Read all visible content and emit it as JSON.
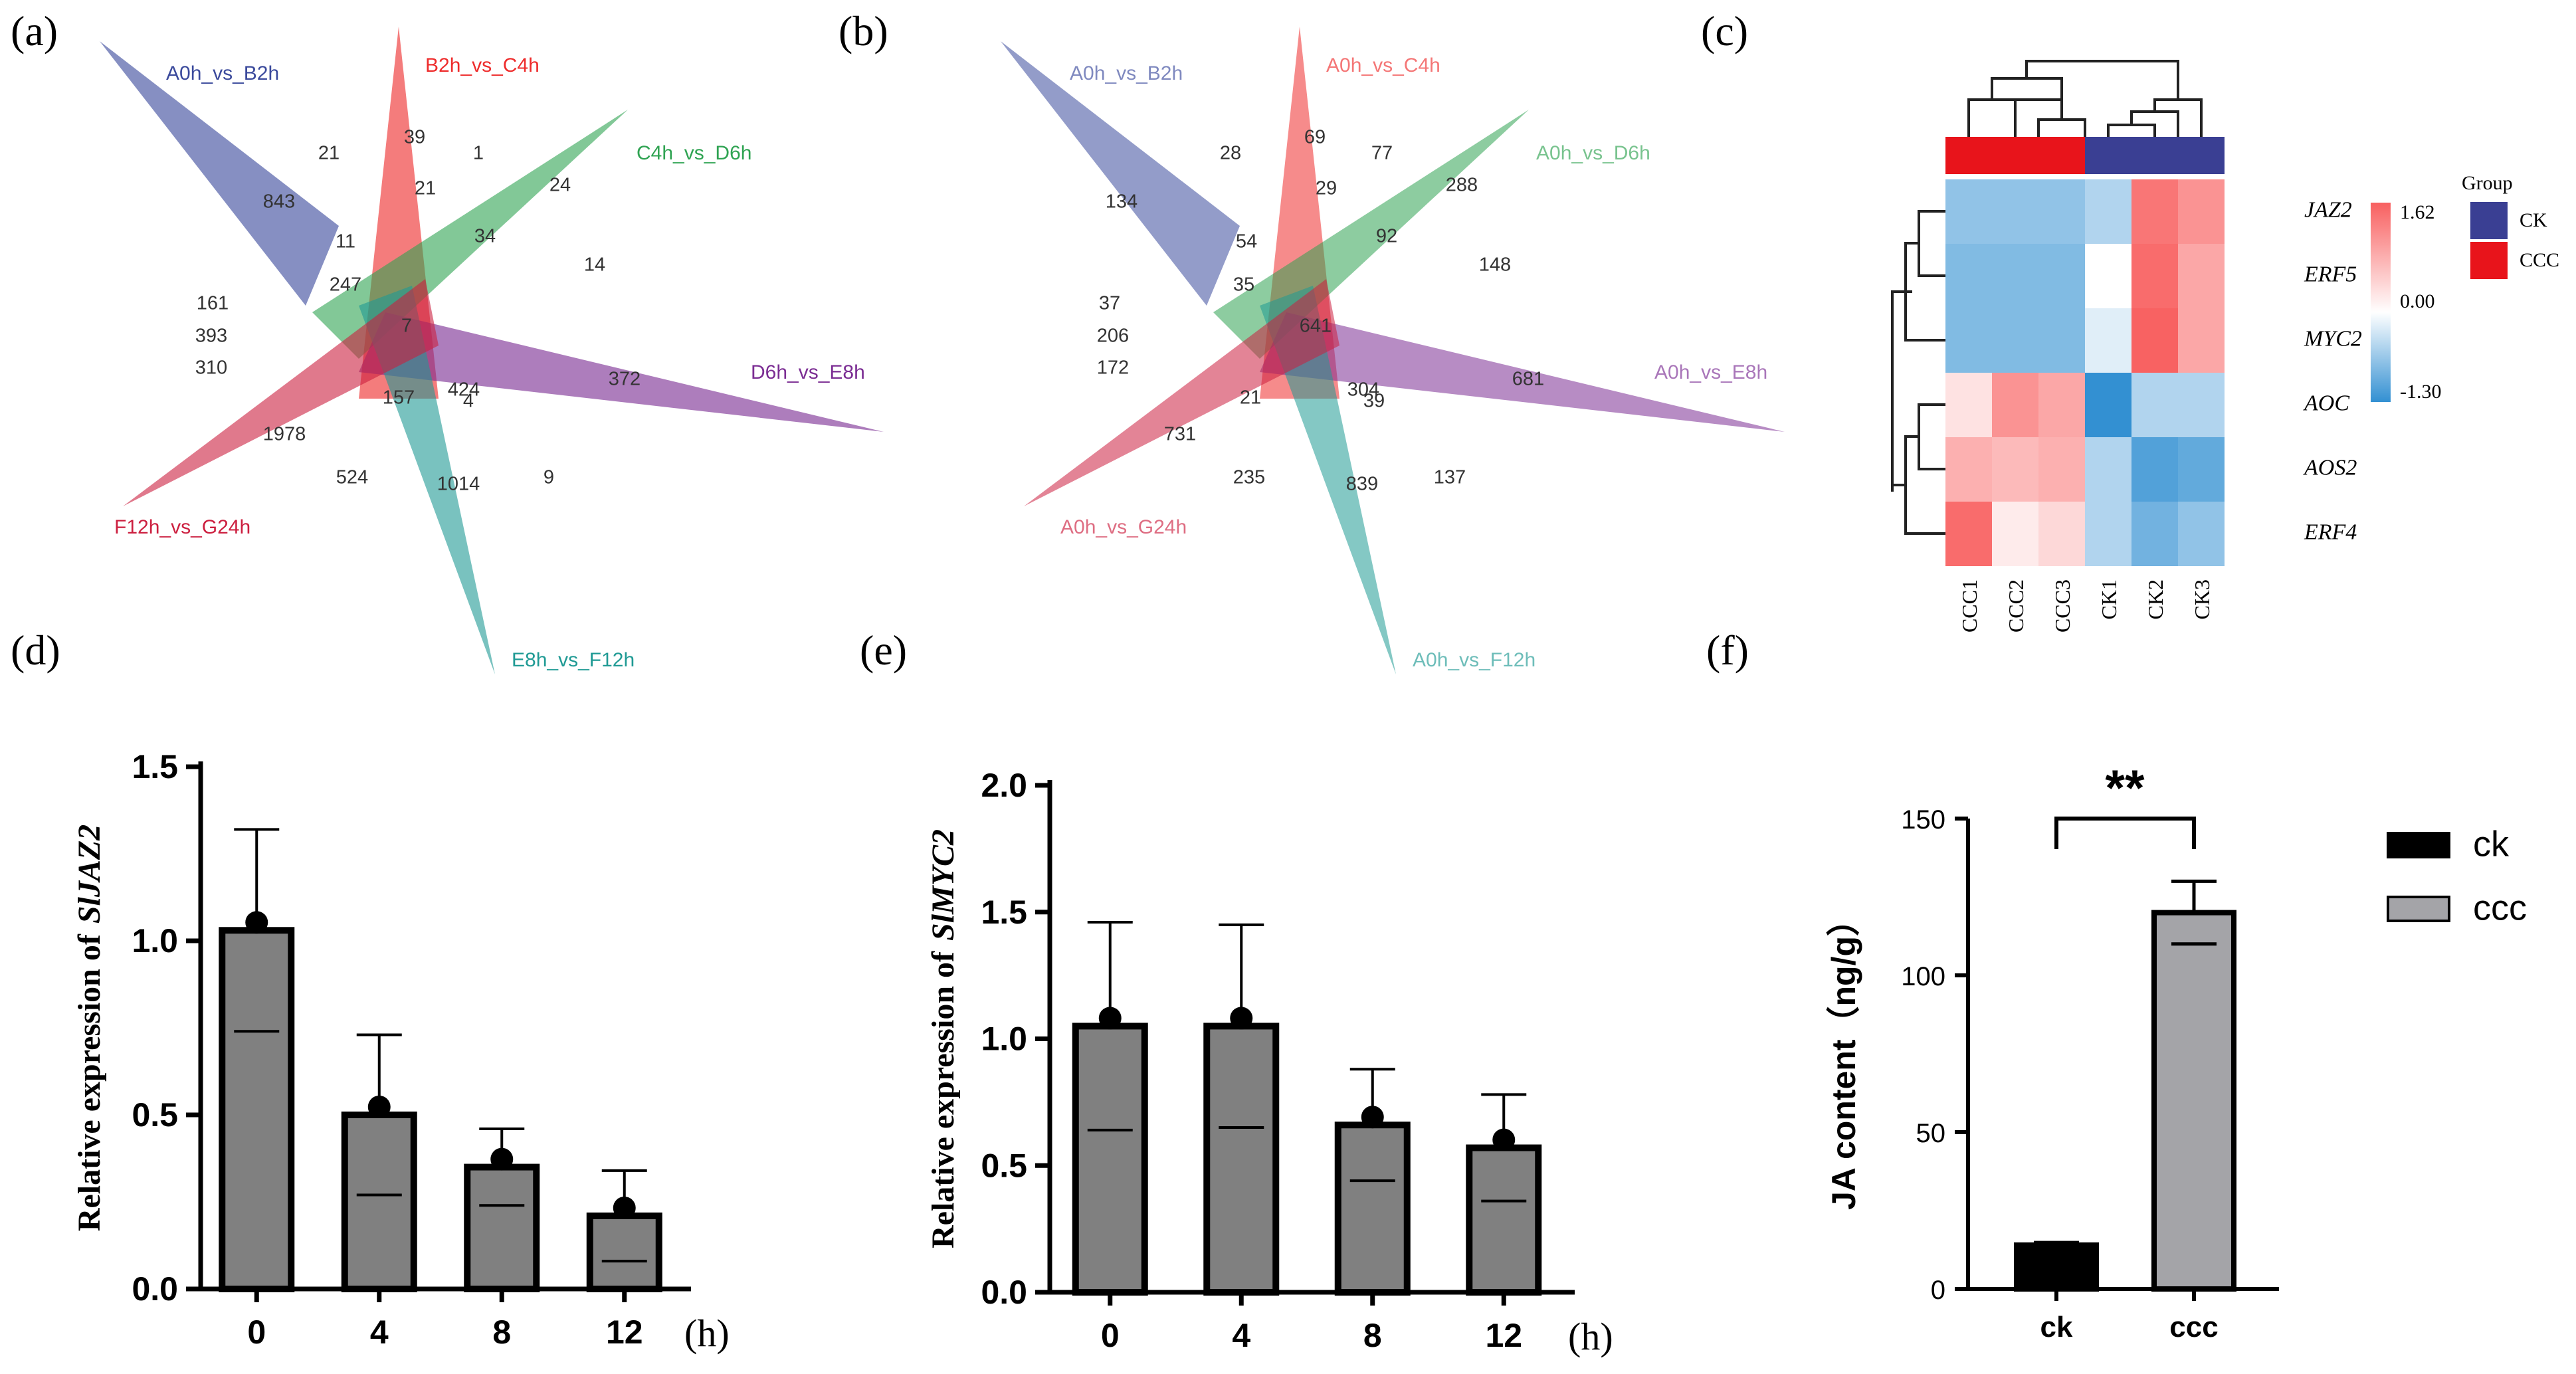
{
  "panel_labels": [
    "(a)",
    "(b)",
    "(c)",
    "(d)",
    "(e)",
    "(f)"
  ],
  "colors": {
    "set1": "#3b4a9c",
    "set2": "#ee2c2c",
    "set3": "#2fa352",
    "set4": "#7b2d93",
    "set5": "#1f9a94",
    "set6": "#cc1f3f",
    "bar_gray": "#808080",
    "bar_black": "#000000",
    "bar_ccc": "#a4a4a8",
    "ck_group": "#3a3f93",
    "ccc_group": "#e8141b"
  },
  "chart_data": [
    {
      "type": "venn",
      "panel": "(a)",
      "sets": [
        "A0h_vs_B2h",
        "B2h_vs_C4h",
        "C4h_vs_D6h",
        "D6h_vs_E8h",
        "E8h_vs_F12h",
        "F12h_vs_G24h"
      ],
      "region_values": [
        "21",
        "39",
        "1",
        "843",
        "21",
        "24",
        "11",
        "34",
        "14",
        "247",
        "161",
        "393",
        "7",
        "310",
        "4",
        "372",
        "157",
        "424",
        "1978",
        "524",
        "1014",
        "9"
      ]
    },
    {
      "type": "venn",
      "panel": "(b)",
      "sets": [
        "A0h_vs_B2h",
        "A0h_vs_C4h",
        "A0h_vs_D6h",
        "A0h_vs_E8h",
        "A0h_vs_F12h",
        "A0h_vs_G24h"
      ],
      "region_values": [
        "28",
        "69",
        "77",
        "134",
        "29",
        "288",
        "54",
        "92",
        "148",
        "35",
        "37",
        "206",
        "641",
        "172",
        "39",
        "681",
        "21",
        "304",
        "731",
        "235",
        "839",
        "137"
      ]
    },
    {
      "type": "heatmap",
      "panel": "(c)",
      "columns": [
        "CCC1",
        "CCC2",
        "CCC3",
        "CK1",
        "CK2",
        "CK3"
      ],
      "column_groups": [
        "CCC",
        "CCC",
        "CCC",
        "CK",
        "CK",
        "CK"
      ],
      "rows": [
        "JAZ2",
        "ERF5",
        "MYC2",
        "AOC",
        "AOS2",
        "ERF4"
      ],
      "values": [
        [
          -0.7,
          -0.7,
          -0.7,
          -0.5,
          1.4,
          1.1
        ],
        [
          -0.8,
          -0.8,
          -0.8,
          0.0,
          1.5,
          0.9
        ],
        [
          -0.8,
          -0.8,
          -0.8,
          -0.2,
          1.6,
          0.9
        ],
        [
          0.3,
          1.1,
          0.9,
          -1.3,
          -0.5,
          -0.5
        ],
        [
          0.8,
          0.7,
          0.8,
          -0.5,
          -1.1,
          -1.0
        ],
        [
          1.5,
          0.2,
          0.4,
          -0.5,
          -0.9,
          -0.7
        ]
      ],
      "colorbar": {
        "max": "1.62",
        "mid": "0.00",
        "min": "-1.30",
        "vmax": 1.62,
        "vmin": -1.3
      },
      "legend": {
        "title": "Group",
        "items": [
          "CK",
          "CCC"
        ]
      }
    },
    {
      "type": "bar",
      "panel": "(d)",
      "categories": [
        "0",
        "4",
        "8",
        "12"
      ],
      "values": [
        1.03,
        0.5,
        0.35,
        0.21
      ],
      "errors": [
        0.29,
        0.23,
        0.11,
        0.13
      ],
      "dots": [
        1.03,
        0.5,
        0.35,
        0.21
      ],
      "ylim": [
        0,
        1.5
      ],
      "yticks": [
        "0.0",
        "0.5",
        "1.0",
        "1.5"
      ],
      "ylabel": "Relative expression of",
      "ylabel_gene": "SlJAZ2",
      "xunit": "(h)"
    },
    {
      "type": "bar",
      "panel": "(e)",
      "categories": [
        "0",
        "4",
        "8",
        "12"
      ],
      "values": [
        1.05,
        1.05,
        0.66,
        0.57
      ],
      "errors": [
        0.41,
        0.4,
        0.22,
        0.21
      ],
      "dots": [
        1.05,
        1.05,
        0.66,
        0.57
      ],
      "ylim": [
        0,
        2.0
      ],
      "yticks": [
        "0.0",
        "0.5",
        "1.0",
        "1.5",
        "2.0"
      ],
      "ylabel": "Relative expression of",
      "ylabel_gene": "SlMYC2",
      "xunit": "(h)"
    },
    {
      "type": "bar",
      "panel": "(f)",
      "categories": [
        "ck",
        "ccc"
      ],
      "values": [
        14,
        120
      ],
      "errors": [
        0.8,
        10
      ],
      "ylim": [
        0,
        150
      ],
      "yticks": [
        "0",
        "50",
        "100",
        "150"
      ],
      "ylabel": "JA content（ng/g）",
      "significance": "**",
      "legend": [
        "ck",
        "ccc"
      ]
    }
  ]
}
